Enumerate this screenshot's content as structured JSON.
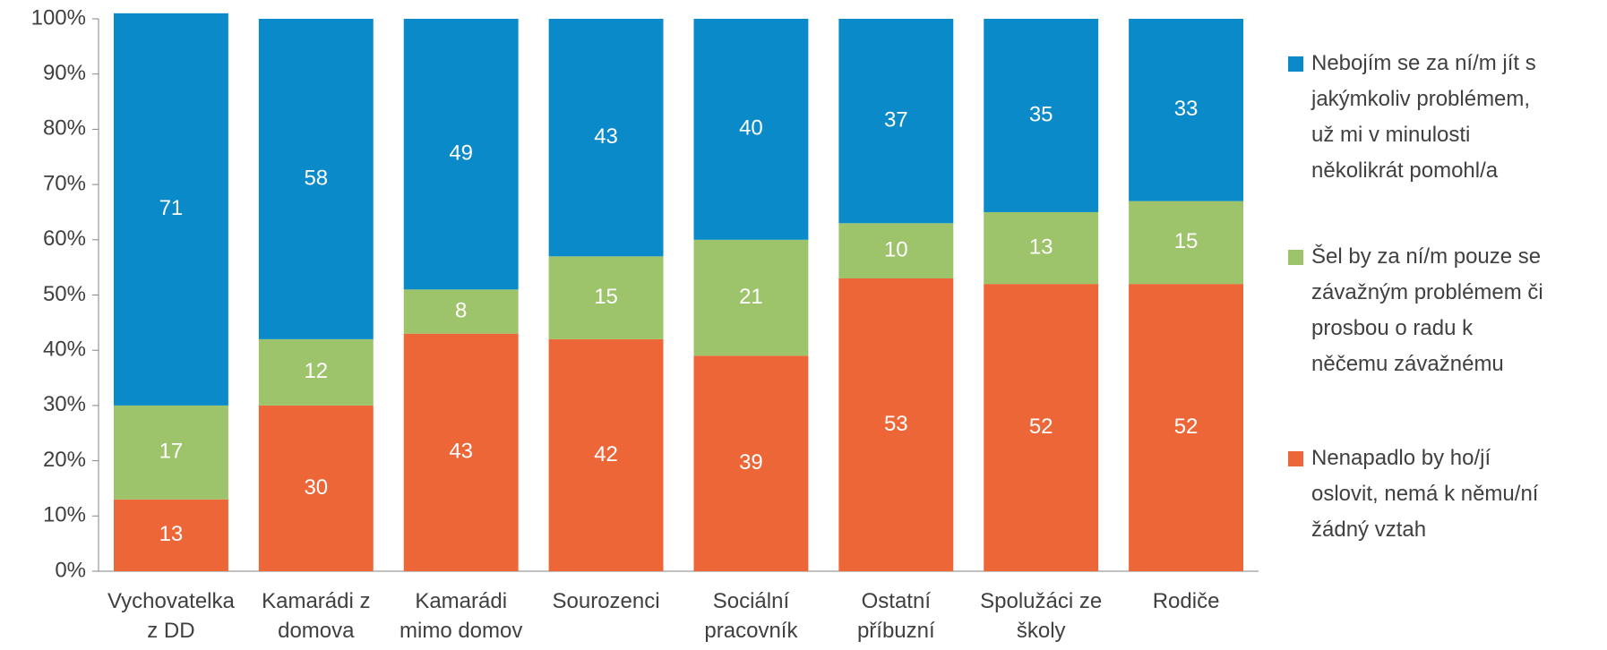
{
  "chart_data": {
    "type": "stacked_bar",
    "categories": [
      "Vychovatelka\nz DD",
      "Kamarádi z\ndomova",
      "Kamarádi\nmimo domov",
      "Sourozenci",
      "Sociální\npracovník",
      "Ostatní\npříbuzní",
      "Spolužáci ze\nškoly",
      "Rodiče"
    ],
    "series": [
      {
        "name": "Nenapadlo by ho/jí\noslovit, nemá k němu/ní\nžádný vztah",
        "color": "#ec6637",
        "values": [
          13,
          30,
          43,
          42,
          39,
          53,
          52,
          52
        ]
      },
      {
        "name": "Šel by za ní/m pouze se\nzávažným problémem či\nprosbou o radu k\nněčemu závažnému",
        "color": "#9dc36b",
        "values": [
          17,
          12,
          8,
          15,
          21,
          10,
          13,
          15
        ]
      },
      {
        "name": "Nebojím se za ní/m jít s\njakýmkoliv problémem,\nuž mi v minulosti\nněkolikrát pomohl/a",
        "color": "#0a8ac9",
        "values": [
          71,
          58,
          49,
          43,
          40,
          37,
          35,
          33
        ]
      }
    ],
    "ylim": [
      0,
      100
    ],
    "yticks": [
      {
        "value": 0,
        "label": "0%"
      },
      {
        "value": 10,
        "label": "10%"
      },
      {
        "value": 20,
        "label": "20%"
      },
      {
        "value": 30,
        "label": "30%"
      },
      {
        "value": 40,
        "label": "40%"
      },
      {
        "value": 50,
        "label": "50%"
      },
      {
        "value": 60,
        "label": "60%"
      },
      {
        "value": 70,
        "label": "70%"
      },
      {
        "value": 80,
        "label": "80%"
      },
      {
        "value": 90,
        "label": "90%"
      },
      {
        "value": 100,
        "label": "100%"
      }
    ],
    "legend": "right"
  }
}
